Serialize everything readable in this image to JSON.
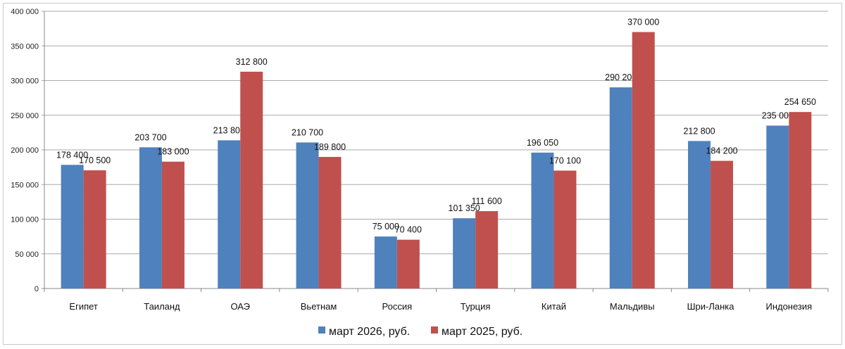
{
  "chart_data": {
    "type": "bar",
    "categories": [
      "Египет",
      "Таиланд",
      "ОАЭ",
      "Вьетнам",
      "Россия",
      "Турция",
      "Китай",
      "Мальдивы",
      "Шри-Ланка",
      "Индонезия"
    ],
    "series": [
      {
        "name": "март 2026, руб.",
        "color": "#4F81BD",
        "values": [
          178400,
          203700,
          213800,
          210700,
          75000,
          101350,
          196050,
          290200,
          212800,
          235000
        ],
        "labels": [
          "178 400",
          "203 700",
          "213 800",
          "210 700",
          "75 000",
          "101 350",
          "196 050",
          "290 200",
          "212 800",
          "235 000"
        ]
      },
      {
        "name": "март 2025, руб.",
        "color": "#C0504D",
        "values": [
          170500,
          183000,
          312800,
          189800,
          70400,
          111600,
          170100,
          370000,
          184200,
          254650
        ],
        "labels": [
          "170 500",
          "183 000",
          "312 800",
          "189 800",
          "70 400",
          "111 600",
          "170 100",
          "370 000",
          "184 200",
          "254 650"
        ]
      }
    ],
    "ylim": [
      0,
      400000
    ],
    "yticks": [
      0,
      50000,
      100000,
      150000,
      200000,
      250000,
      300000,
      350000,
      400000
    ],
    "ytick_labels": [
      "0",
      "50 000",
      "100 000",
      "150 000",
      "200 000",
      "250 000",
      "300 000",
      "350 000",
      "400 000"
    ],
    "grid": true,
    "legend": "bottom",
    "title": "",
    "xlabel": "",
    "ylabel": ""
  }
}
